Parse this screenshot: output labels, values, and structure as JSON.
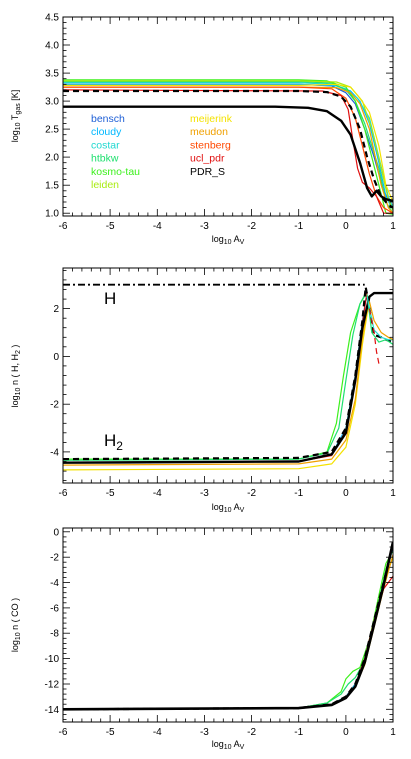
{
  "chart_data": [
    {
      "type": "line",
      "xlabel": "log10 AV",
      "ylabel": "log10 Tgas [K]",
      "xlim": [
        -6,
        1
      ],
      "ylim": [
        0.95,
        4.5
      ],
      "xticks": [
        "-6",
        "-5",
        "-4",
        "-3",
        "-2",
        "-1",
        "0",
        "1"
      ],
      "yticks": [
        "1.0",
        "1.5",
        "2.0",
        "2.5",
        "3.0",
        "3.5",
        "4.0",
        "4.5"
      ],
      "ytick_values": [
        1.0,
        1.5,
        2.0,
        2.5,
        3.0,
        3.5,
        4.0,
        4.5
      ],
      "grid": false,
      "legend": {
        "placement": "center-left",
        "columns": [
          [
            "bensch",
            "cloudy",
            "costar",
            "htbkw",
            "kosmo-tau",
            "leiden"
          ],
          [
            "meijerink",
            "meudon",
            "stenberg",
            "ucl_pdr",
            "PDR_S"
          ]
        ]
      },
      "series": [
        {
          "name": "bensch",
          "color": "#1e5fd6",
          "dash": "solid",
          "width": 1.2,
          "x": [
            -6,
            -1.0,
            -0.3,
            0.0,
            0.2,
            0.4,
            0.6,
            0.8,
            1.0
          ],
          "y": [
            3.3,
            3.3,
            3.27,
            3.15,
            2.95,
            2.5,
            2.0,
            1.4,
            1.1
          ]
        },
        {
          "name": "cloudy",
          "color": "#00b8ff",
          "dash": "solid",
          "width": 1.2,
          "x": [
            -6,
            -1.0,
            -0.2,
            0.1,
            0.3,
            0.5,
            0.7,
            0.85,
            1.0
          ],
          "y": [
            3.3,
            3.3,
            3.27,
            3.18,
            3.0,
            2.6,
            1.9,
            1.3,
            1.05
          ]
        },
        {
          "name": "costar",
          "color": "#20d8d0",
          "dash": "solid",
          "width": 1.2,
          "x": [
            -6,
            -1.0,
            -0.3,
            0.0,
            0.25,
            0.5,
            0.7,
            0.9,
            1.0
          ],
          "y": [
            3.33,
            3.33,
            3.3,
            3.22,
            3.05,
            2.7,
            2.0,
            1.3,
            1.1
          ]
        },
        {
          "name": "htbkw",
          "color": "#20e070",
          "dash": "solid",
          "width": 1.2,
          "x": [
            -6,
            -1.0,
            -0.3,
            0.0,
            0.2,
            0.4,
            0.55,
            0.7,
            0.85,
            1.0
          ],
          "y": [
            3.35,
            3.35,
            3.32,
            3.2,
            3.0,
            2.6,
            2.2,
            1.8,
            1.2,
            1.0
          ]
        },
        {
          "name": "kosmo-tau",
          "color": "#3cf01c",
          "dash": "solid",
          "width": 1.2,
          "x": [
            -6,
            -1.0,
            -0.4,
            0.0,
            0.2,
            0.4,
            0.55,
            0.7,
            0.85,
            1.0
          ],
          "y": [
            3.38,
            3.38,
            3.36,
            3.25,
            3.0,
            2.5,
            2.0,
            1.5,
            1.0,
            0.98
          ]
        },
        {
          "name": "leiden",
          "color": "#a8ec10",
          "dash": "solid",
          "width": 1.2,
          "x": [
            -6,
            -1.0,
            -0.2,
            0.1,
            0.35,
            0.55,
            0.75,
            0.9,
            1.0
          ],
          "y": [
            3.36,
            3.36,
            3.34,
            3.25,
            3.0,
            2.5,
            1.8,
            1.25,
            1.05
          ]
        },
        {
          "name": "meijerink",
          "color": "#f4e200",
          "dash": "solid",
          "width": 1.2,
          "x": [
            -6,
            -1.0,
            -0.2,
            0.1,
            0.3,
            0.5,
            0.7,
            0.85,
            1.0
          ],
          "y": [
            3.28,
            3.28,
            3.3,
            3.25,
            3.05,
            2.8,
            2.2,
            1.5,
            1.2
          ]
        },
        {
          "name": "meudon",
          "color": "#f0a000",
          "dash": "solid",
          "width": 1.2,
          "x": [
            -6,
            -1.0,
            -0.2,
            0.1,
            0.3,
            0.5,
            0.6,
            0.75,
            0.9,
            1.0
          ],
          "y": [
            3.25,
            3.25,
            3.24,
            3.15,
            2.95,
            2.5,
            2.1,
            1.5,
            1.1,
            1.0
          ]
        },
        {
          "name": "stenberg",
          "color": "#ff4800",
          "dash": "solid",
          "width": 1.2,
          "x": [
            -6,
            -1.0,
            -0.3,
            0.0,
            0.2,
            0.35,
            0.5,
            0.65,
            0.8,
            1.0
          ],
          "y": [
            3.25,
            3.25,
            3.22,
            3.05,
            2.7,
            2.2,
            1.7,
            1.3,
            1.1,
            1.0
          ]
        },
        {
          "name": "ucl_pdr",
          "color": "#e01010",
          "dash": "solid",
          "width": 1.2,
          "x": [
            -6,
            -0.5,
            -0.1,
            0.05,
            0.15,
            0.25,
            0.35,
            0.5,
            0.65,
            0.8,
            1.0
          ],
          "y": [
            3.2,
            3.18,
            3.1,
            2.85,
            2.3,
            1.8,
            1.55,
            1.45,
            1.3,
            1.0,
            1.0
          ]
        },
        {
          "name": "PDR_S",
          "color": "#000000",
          "dash": "dashed",
          "width": 2.2,
          "x": [
            -6,
            -1.0,
            -0.4,
            -0.1,
            0.1,
            0.3,
            0.45,
            0.6,
            0.75,
            0.9,
            1.0
          ],
          "y": [
            3.18,
            3.18,
            3.16,
            3.08,
            2.9,
            2.5,
            2.0,
            1.6,
            1.3,
            1.15,
            1.1
          ]
        },
        {
          "name": "",
          "color": "#000000",
          "dash": "solid",
          "width": 2.4,
          "x": [
            -6,
            -1.5,
            -0.8,
            -0.4,
            -0.1,
            0.1,
            0.3,
            0.45,
            0.55,
            0.65,
            0.75,
            0.85,
            1.0
          ],
          "y": [
            2.9,
            2.9,
            2.88,
            2.82,
            2.65,
            2.4,
            1.9,
            1.45,
            1.3,
            1.4,
            1.3,
            1.25,
            1.22
          ]
        }
      ]
    },
    {
      "type": "line",
      "xlabel": "log10 AV",
      "ylabel": "log10 n ( H, H2 )",
      "xlim": [
        -6,
        1
      ],
      "ylim": [
        -5.3,
        3.7
      ],
      "xticks": [
        "-6",
        "-5",
        "-4",
        "-3",
        "-2",
        "-1",
        "0",
        "1"
      ],
      "yticks": [
        "-4",
        "-2",
        "0",
        "2"
      ],
      "ytick_values": [
        -4,
        -2,
        0,
        2
      ],
      "grid": false,
      "annotations": [
        "H",
        "H2"
      ],
      "series": [
        {
          "name": "",
          "color": "#000000",
          "dash": "dashdot",
          "width": 1.8,
          "x": [
            -6,
            0.4
          ],
          "y": [
            3.0,
            3.0
          ]
        },
        {
          "name": "",
          "color": "#f4e200",
          "width": 1.2,
          "dash": "solid",
          "x": [
            -6,
            -1.0,
            -0.3,
            0.0,
            0.2,
            0.35,
            0.5
          ],
          "y": [
            -4.75,
            -4.7,
            -4.5,
            -3.8,
            -2.0,
            0.5,
            2.4
          ]
        },
        {
          "name": "",
          "color": "#f0a000",
          "width": 1.2,
          "dash": "solid",
          "x": [
            -6,
            -1.0,
            -0.3,
            0.0,
            0.2,
            0.35,
            0.5
          ],
          "y": [
            -4.55,
            -4.5,
            -4.3,
            -3.5,
            -1.8,
            0.8,
            2.5
          ]
        },
        {
          "name": "",
          "color": "#3cf01c",
          "width": 1.2,
          "dash": "solid",
          "x": [
            -6,
            -1.0,
            -0.4,
            -0.2,
            -0.05,
            0.1,
            0.3,
            0.45
          ],
          "y": [
            -4.3,
            -4.3,
            -4.0,
            -2.8,
            -0.8,
            1.0,
            2.2,
            2.7
          ]
        },
        {
          "name": "",
          "color": "#20e070",
          "width": 1.2,
          "dash": "solid",
          "x": [
            -6,
            -1.0,
            -0.4,
            -0.15,
            0.0,
            0.15,
            0.3,
            0.45
          ],
          "y": [
            -4.35,
            -4.3,
            -4.05,
            -3.0,
            -1.0,
            0.9,
            2.2,
            2.75
          ]
        },
        {
          "name": "",
          "color": "#00b8ff",
          "width": 1.2,
          "dash": "solid",
          "x": [
            -6,
            -1.0,
            -0.3,
            0.0,
            0.2,
            0.35,
            0.45
          ],
          "y": [
            -4.45,
            -4.4,
            -4.1,
            -3.0,
            -0.8,
            1.5,
            2.7
          ]
        },
        {
          "name": "",
          "color": "#e01010",
          "width": 1.2,
          "dash": "solid",
          "x": [
            -6,
            -1.0,
            -0.3,
            0.0,
            0.2,
            0.35,
            0.45
          ],
          "y": [
            -4.45,
            -4.4,
            -4.15,
            -3.1,
            -0.9,
            1.4,
            2.7
          ]
        },
        {
          "name": "",
          "color": "#000000",
          "width": 2.4,
          "dash": "solid",
          "x": [
            -6,
            -1.0,
            -0.3,
            0.0,
            0.2,
            0.35,
            0.5,
            0.6,
            1.0
          ],
          "y": [
            -4.45,
            -4.4,
            -4.1,
            -3.2,
            -1.0,
            1.2,
            2.5,
            2.65,
            2.65
          ]
        },
        {
          "name": "",
          "color": "#000000",
          "width": 2.2,
          "dash": "dashed",
          "x": [
            -6,
            -1.0,
            -0.3,
            0.0,
            0.2,
            0.35,
            0.42,
            0.5,
            0.6,
            0.75,
            0.85,
            1.0
          ],
          "y": [
            -4.3,
            -4.25,
            -4.0,
            -3.0,
            -0.8,
            1.5,
            2.9,
            2.0,
            0.9,
            0.8,
            0.7,
            0.6
          ]
        },
        {
          "name": "",
          "color": "#20e070",
          "width": 1.2,
          "dash": "solid",
          "x": [
            0.45,
            0.55,
            0.7,
            0.85,
            1.0
          ],
          "y": [
            2.6,
            1.0,
            0.6,
            0.7,
            0.5
          ]
        },
        {
          "name": "",
          "color": "#20d8d0",
          "width": 1.2,
          "dash": "solid",
          "x": [
            0.45,
            0.6,
            0.75,
            0.9,
            1.0
          ],
          "y": [
            2.5,
            1.1,
            0.8,
            0.7,
            0.7
          ]
        },
        {
          "name": "",
          "color": "#e01010",
          "width": 1.2,
          "dash": "dashed",
          "x": [
            0.5,
            0.6,
            0.65,
            0.7
          ],
          "y": [
            2.0,
            1.0,
            0.2,
            -0.3
          ]
        },
        {
          "name": "",
          "color": "#f0a000",
          "width": 1.2,
          "dash": "solid",
          "x": [
            0.5,
            0.6,
            0.75,
            0.9,
            1.0
          ],
          "y": [
            2.3,
            1.5,
            1.0,
            0.8,
            0.7
          ]
        }
      ]
    },
    {
      "type": "line",
      "xlabel": "log10 AV",
      "ylabel": "log10 n ( CO )",
      "xlim": [
        -6,
        1
      ],
      "ylim": [
        -15,
        0.3
      ],
      "xticks": [
        "-6",
        "-5",
        "-4",
        "-3",
        "-2",
        "-1",
        "0",
        "1"
      ],
      "yticks": [
        "-14",
        "-12",
        "-10",
        "-8",
        "-6",
        "-4",
        "-2",
        "0"
      ],
      "ytick_values": [
        -14,
        -12,
        -10,
        -8,
        -6,
        -4,
        -2,
        0
      ],
      "grid": false,
      "series": [
        {
          "name": "",
          "color": "#3cf01c",
          "width": 1.2,
          "dash": "solid",
          "x": [
            -6,
            -1.0,
            -0.4,
            -0.1,
            0.0,
            0.15,
            0.3,
            0.5,
            0.7,
            0.85,
            1.0
          ],
          "y": [
            -14.0,
            -13.9,
            -13.5,
            -12.6,
            -11.6,
            -11.0,
            -10.7,
            -8.5,
            -5.0,
            -2.5,
            -1.5
          ]
        },
        {
          "name": "",
          "color": "#20e070",
          "width": 1.2,
          "dash": "solid",
          "x": [
            -6,
            -1.0,
            -0.4,
            -0.1,
            0.05,
            0.2,
            0.35,
            0.5,
            0.7,
            0.85,
            1.0
          ],
          "y": [
            -14.0,
            -13.9,
            -13.5,
            -12.8,
            -12.0,
            -11.5,
            -10.5,
            -8.5,
            -5.5,
            -3.0,
            -1.2
          ]
        },
        {
          "name": "",
          "color": "#f4e200",
          "width": 1.2,
          "dash": "solid",
          "x": [
            -6,
            -1.0,
            -0.3,
            0.0,
            0.2,
            0.4,
            0.6,
            0.75,
            0.9,
            1.0
          ],
          "y": [
            -14.0,
            -13.9,
            -13.6,
            -13.0,
            -12.0,
            -10.5,
            -7.5,
            -5.0,
            -3.0,
            -2.0
          ]
        },
        {
          "name": "",
          "color": "#f0a000",
          "width": 1.2,
          "dash": "solid",
          "x": [
            -6,
            -1.0,
            -0.3,
            0.0,
            0.2,
            0.4,
            0.6,
            0.8,
            1.0
          ],
          "y": [
            -14.0,
            -13.9,
            -13.6,
            -13.1,
            -12.2,
            -10.5,
            -7.5,
            -4.5,
            -1.8
          ]
        },
        {
          "name": "",
          "color": "#e01010",
          "width": 1.2,
          "dash": "solid",
          "x": [
            -6,
            -1.0,
            -0.3,
            0.0,
            0.2,
            0.4,
            0.6,
            0.8,
            1.0
          ],
          "y": [
            -14.0,
            -13.9,
            -13.6,
            -13.0,
            -12.0,
            -10.0,
            -7.0,
            -4.5,
            -3.5
          ]
        },
        {
          "name": "",
          "color": "#00b8ff",
          "width": 1.2,
          "dash": "solid",
          "x": [
            -6,
            -1.0,
            -0.3,
            0.0,
            0.2,
            0.4,
            0.6,
            0.8,
            1.0
          ],
          "y": [
            -14.0,
            -13.9,
            -13.6,
            -13.0,
            -12.0,
            -10.2,
            -7.2,
            -4.0,
            -1.2
          ]
        },
        {
          "name": "",
          "color": "#000000",
          "width": 2.2,
          "dash": "dashed",
          "x": [
            -6,
            -1.0,
            -0.3,
            0.0,
            0.2,
            0.4,
            0.6,
            0.8,
            1.0
          ],
          "y": [
            -14.0,
            -13.9,
            -13.6,
            -13.0,
            -12.0,
            -10.0,
            -7.0,
            -4.0,
            -1.0
          ]
        },
        {
          "name": "",
          "color": "#000000",
          "width": 2.6,
          "dash": "solid",
          "x": [
            -6,
            -1.0,
            -0.3,
            0.0,
            0.2,
            0.4,
            0.6,
            0.8,
            1.0
          ],
          "y": [
            -14.0,
            -13.9,
            -13.65,
            -13.1,
            -12.2,
            -10.3,
            -7.3,
            -4.2,
            -0.8
          ]
        }
      ]
    }
  ]
}
